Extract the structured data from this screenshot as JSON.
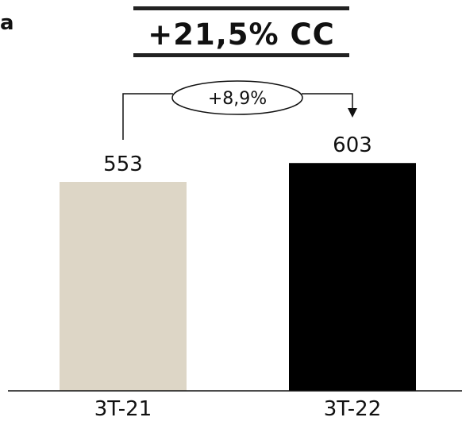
{
  "corner_label": "a",
  "headline": "+21,5% CC",
  "chart_data": {
    "type": "bar",
    "categories": [
      "3T-21",
      "3T-22"
    ],
    "values": [
      553,
      603
    ],
    "value_labels": [
      "553",
      "603"
    ],
    "bar_colors": [
      "#DDD6C6",
      "#000000"
    ],
    "growth_label": "+8,9%",
    "title": "",
    "xlabel": "",
    "ylabel": "",
    "ylim": [
      0,
      720
    ],
    "grid": false
  }
}
